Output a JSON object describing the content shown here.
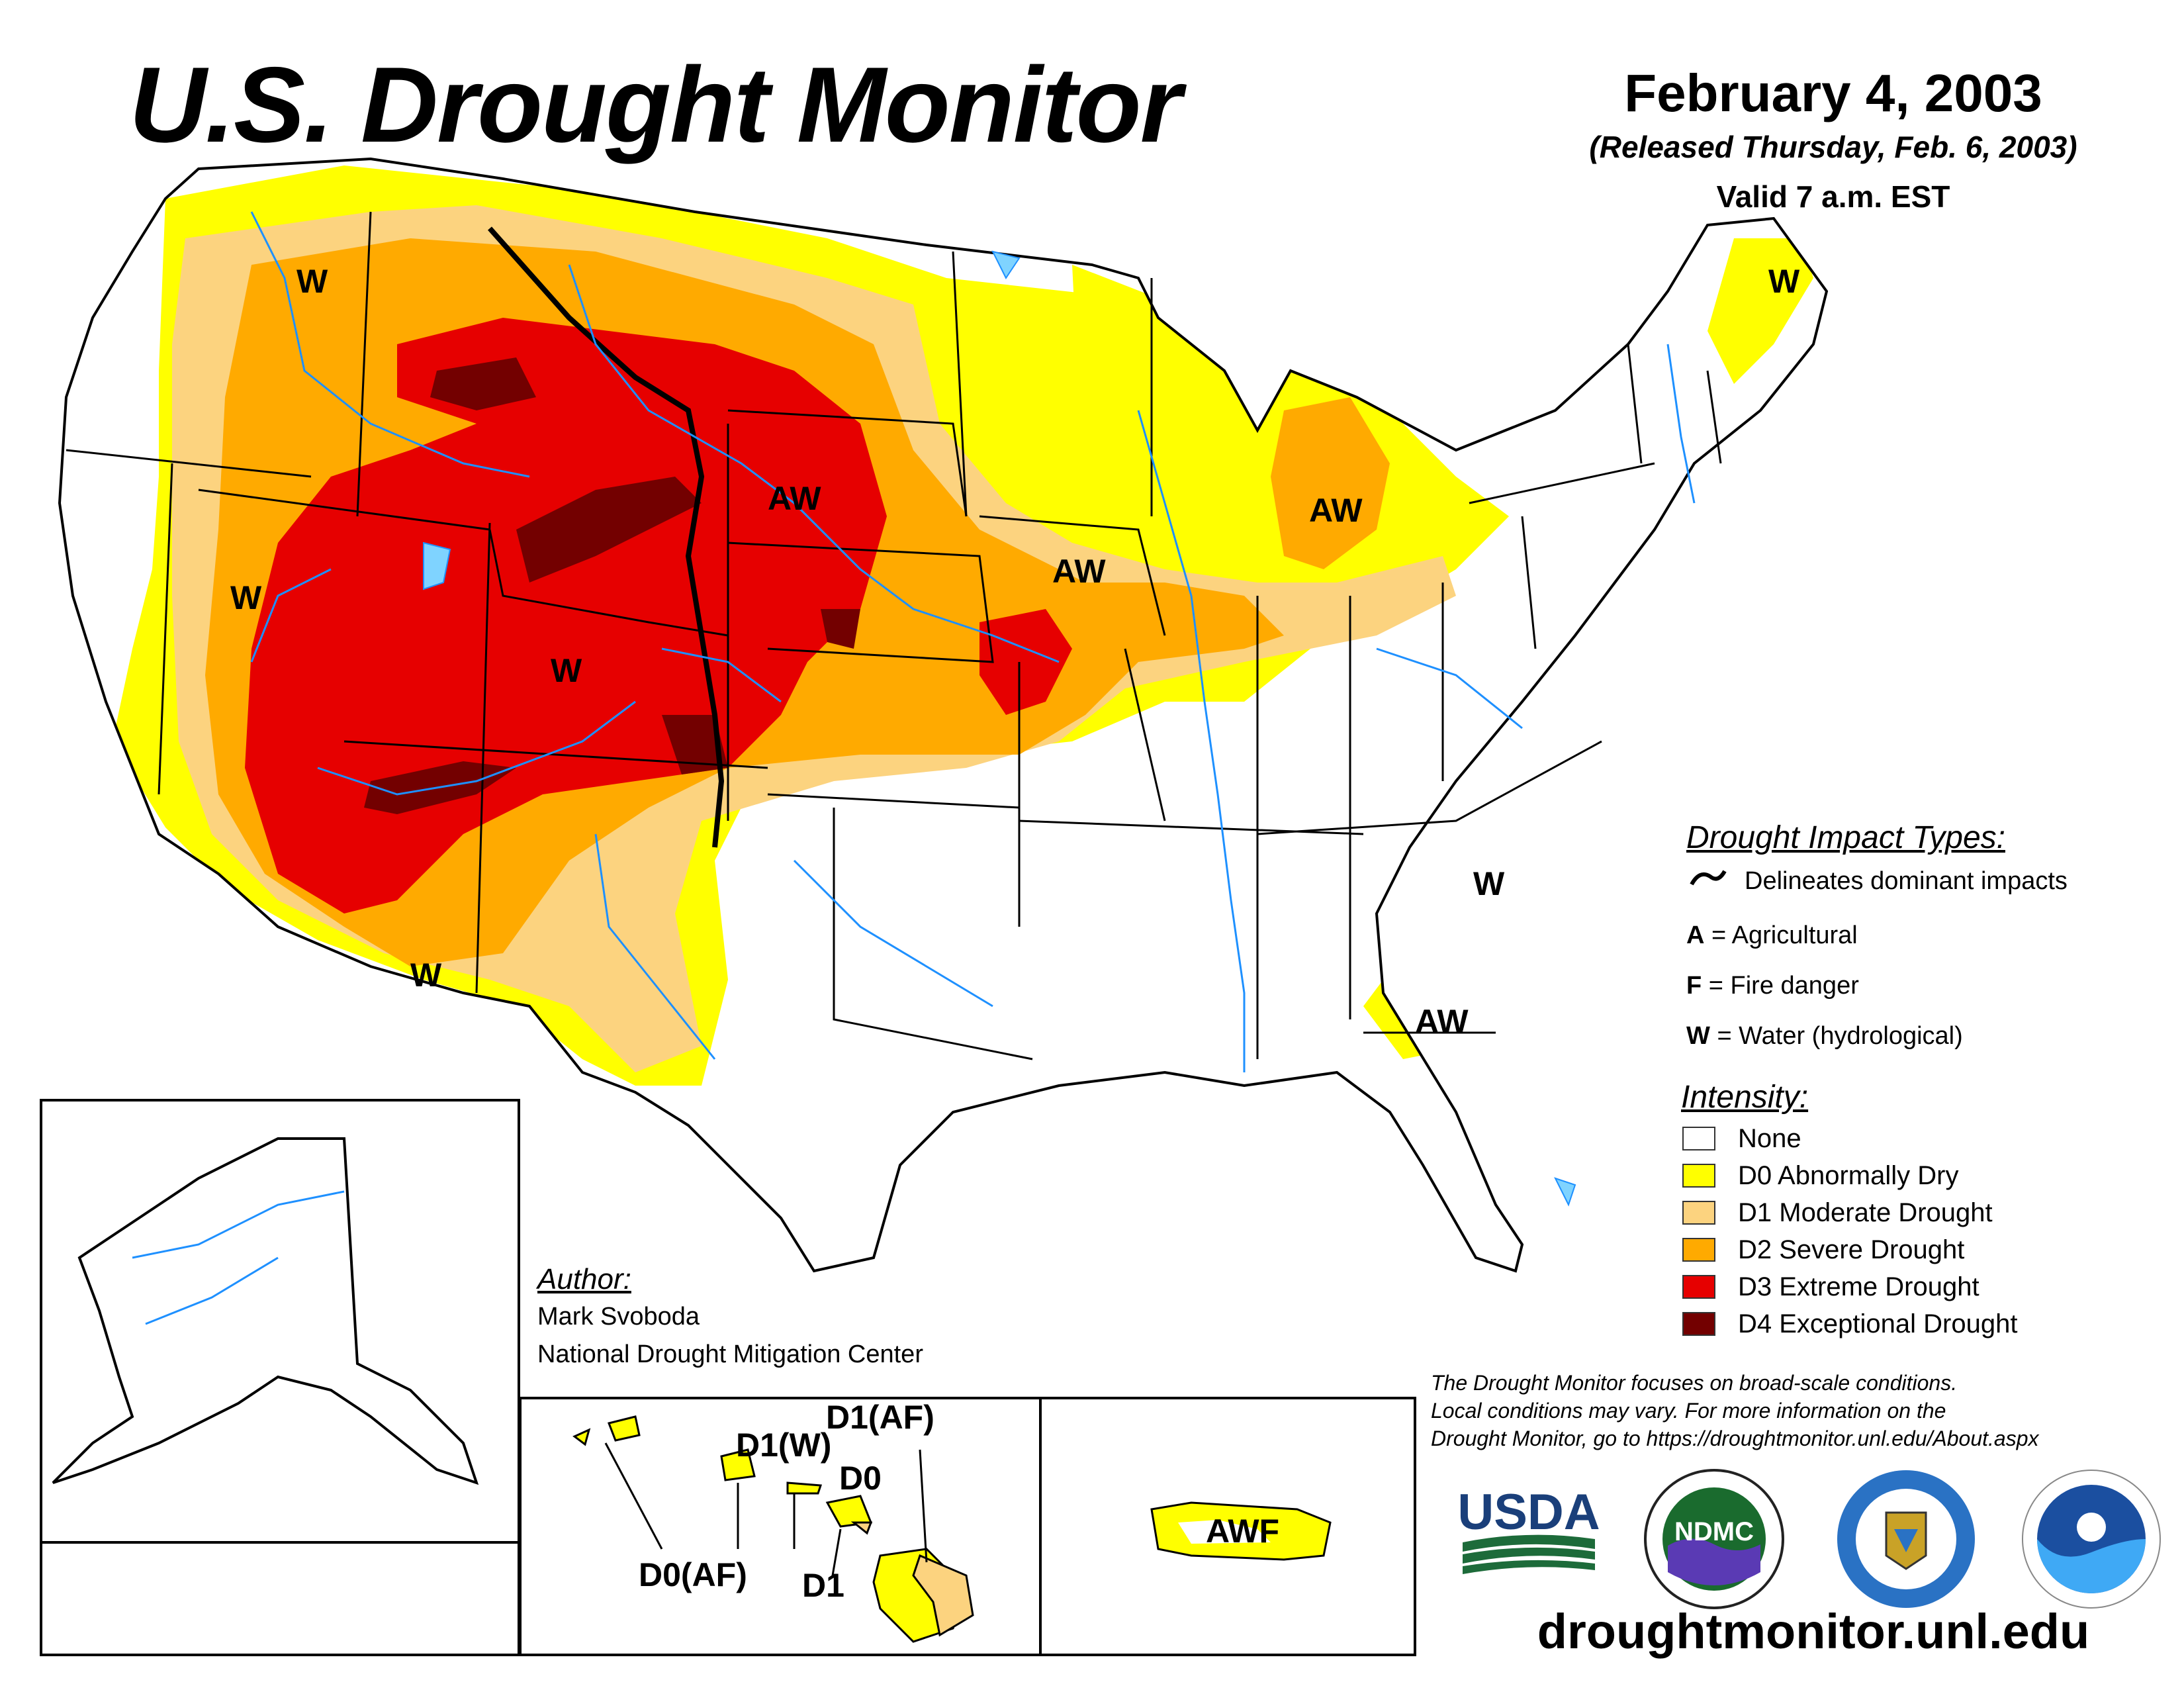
{
  "header": {
    "title": "U.S. Drought Monitor",
    "date": "February 4, 2003",
    "released": "(Released Thursday, Feb. 6, 2003)",
    "valid": "Valid 7 a.m. EST"
  },
  "impact_legend": {
    "heading": "Drought Impact Types:",
    "delineates": "Delineates dominant impacts",
    "types": [
      {
        "code": "A",
        "label": "= Agricultural"
      },
      {
        "code": "F",
        "label": "= Fire danger"
      },
      {
        "code": "W",
        "label": "= Water (hydrological)"
      }
    ]
  },
  "intensity_legend": {
    "heading": "Intensity:",
    "items": [
      {
        "label": "None",
        "color": "#ffffff"
      },
      {
        "label": "D0 Abnormally Dry",
        "color": "#ffff00"
      },
      {
        "label": "D1 Moderate Drought",
        "color": "#fcd37f"
      },
      {
        "label": "D2 Severe Drought",
        "color": "#ffaa00"
      },
      {
        "label": "D3 Extreme Drought",
        "color": "#e60000"
      },
      {
        "label": "D4 Exceptional Drought",
        "color": "#730000"
      }
    ]
  },
  "colors": {
    "none": "#ffffff",
    "d0": "#ffff00",
    "d1": "#fcd37f",
    "d2": "#ffaa00",
    "d3": "#e60000",
    "d4": "#730000",
    "water": "#1e90ff",
    "lake": "#7fd3ff"
  },
  "map_labels": {
    "w_pacific_nw": "W",
    "w_nevada": "W",
    "w_colorado": "W",
    "w_arizona": "W",
    "w_maine": "W",
    "w_carolinas": "W",
    "aw_dakota": "AW",
    "aw_iowa": "AW",
    "aw_michigan": "AW",
    "aw_georgia": "AW"
  },
  "hawaii_labels": {
    "d1w": "D1(W)",
    "d1af": "D1(AF)",
    "d0": "D0",
    "d0af": "D0(AF)",
    "d1": "D1"
  },
  "puerto_rico_label": "AWF",
  "author": {
    "heading": "Author:",
    "name": "Mark Svoboda",
    "org": "National Drought Mitigation Center"
  },
  "disclaimer": [
    "The Drought Monitor focuses on broad-scale conditions.",
    "Local conditions may vary. For more information on the",
    "Drought Monitor, go to https://droughtmonitor.unl.edu/About.aspx"
  ],
  "logos": {
    "usda": "USDA",
    "ndmc": "NDMC"
  },
  "website": "droughtmonitor.unl.edu"
}
